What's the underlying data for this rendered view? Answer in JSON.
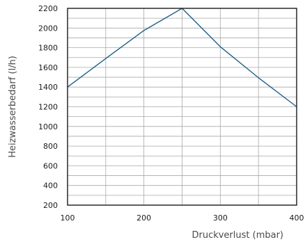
{
  "chart_data": {
    "type": "line",
    "title": "",
    "xlabel": "Druckverlust (mbar)",
    "ylabel": "Heizwasserbedarf (l/h)",
    "xlim": [
      100,
      400
    ],
    "ylim": [
      200,
      2200
    ],
    "x_ticks": [
      100,
      200,
      300,
      400
    ],
    "x_minor_gridlines": [
      150,
      250,
      350
    ],
    "y_ticks": [
      200,
      400,
      600,
      800,
      1000,
      1200,
      1400,
      1600,
      1800,
      2000,
      2200
    ],
    "y_minor_gridlines": [
      300,
      500,
      700,
      900,
      1100,
      1300,
      1500,
      1700,
      1900,
      2100
    ],
    "grid": true,
    "legend": "none",
    "series": [
      {
        "color": "#1f5f86",
        "x": [
          100,
          150,
          200,
          250,
          300,
          350,
          400
        ],
        "y": [
          1400,
          1690,
          1975,
          2200,
          1810,
          1495,
          1200
        ]
      }
    ]
  }
}
